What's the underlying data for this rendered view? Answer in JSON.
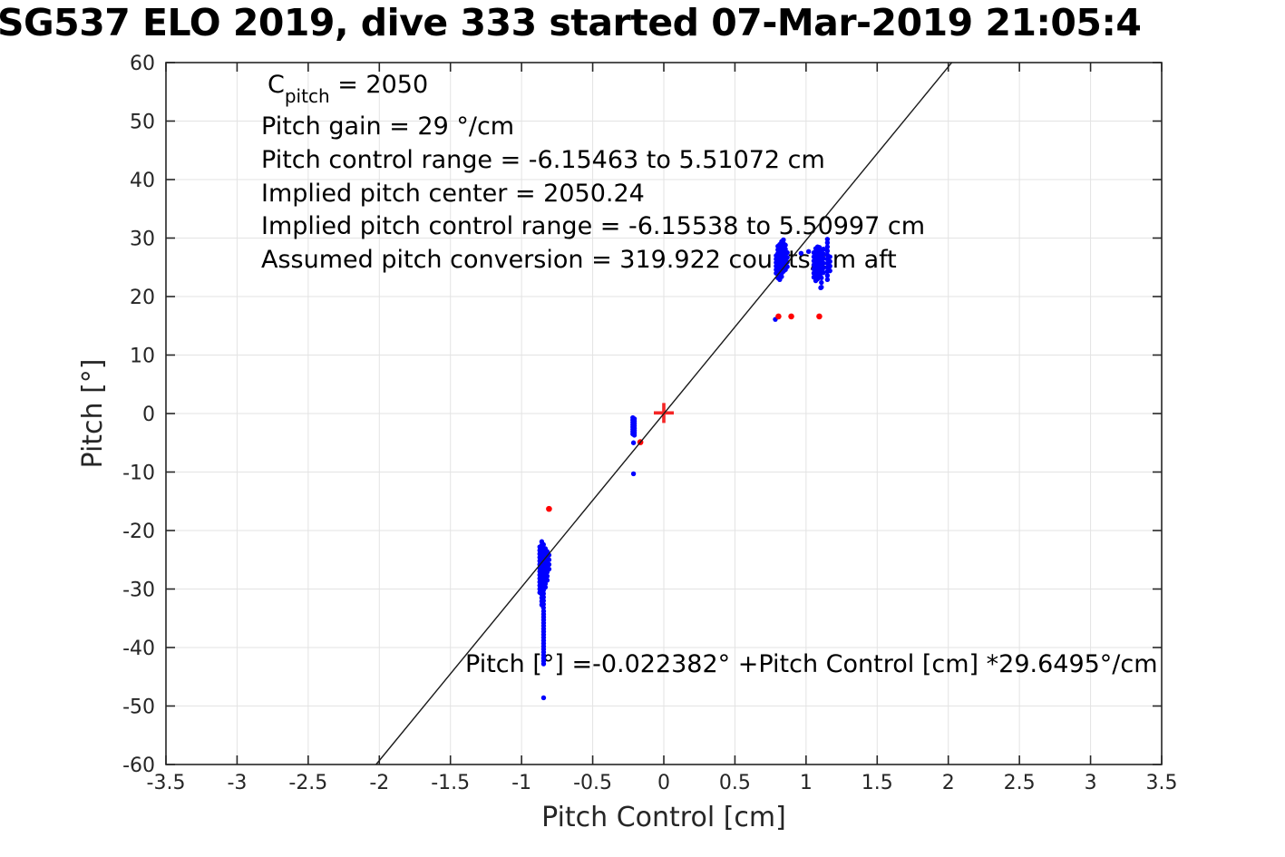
{
  "title": "SG537 ELO 2019, dive 333 started 07-Mar-2019 21:05:4",
  "annotations": {
    "c_pitch": {
      "base": "C",
      "sub": "pitch",
      "rest": " = 2050"
    },
    "lines": [
      "Pitch gain = 29 °/cm",
      "Pitch control range = -6.15463 to 5.51072 cm",
      "Implied pitch center = 2050.24",
      "Implied pitch control range = -6.15538 to 5.50997 cm",
      "Assumed pitch conversion = 319.922 counts/cm aft"
    ],
    "fit_equation": "Pitch [°] =-0.022382° +Pitch Control [cm] *29.6495°/cm"
  },
  "colors": {
    "observed_points": "#0000ff",
    "flagged_points": "#ff0000",
    "center_marker": "#f42525",
    "fit_line": "#1a1a1a",
    "grid": "#e3e3e3",
    "axes": "#262626"
  },
  "chart_data": {
    "type": "scatter",
    "title": "SG537 ELO 2019, dive 333 started 07-Mar-2019 21:05:4",
    "xlabel": "Pitch Control [cm]",
    "ylabel": "Pitch [°]",
    "xlim": [
      -3.5,
      3.5
    ],
    "ylim": [
      -60,
      60
    ],
    "grid": true,
    "x_ticks": [
      -3.5,
      -3,
      -2.5,
      -2,
      -1.5,
      -1,
      -0.5,
      0,
      0.5,
      1,
      1.5,
      2,
      2.5,
      3,
      3.5
    ],
    "y_ticks": [
      -60,
      -50,
      -40,
      -30,
      -20,
      -10,
      0,
      10,
      20,
      30,
      40,
      50,
      60
    ],
    "fit_line": {
      "slope": 29.6495,
      "intercept": -0.022382,
      "x_start": -2.0229,
      "x_end": 2.0245
    },
    "series": [
      {
        "name": "observed-pitch",
        "marker": "dot",
        "color": "#0000ff",
        "strands": [
          {
            "x": -0.872,
            "ys": [
              -22.8,
              -23.4,
              -24.0,
              -24.6,
              -25.2,
              -25.8,
              -26.4,
              -27.0,
              -27.6,
              -28.2,
              -28.8,
              -29.4,
              -30.0,
              -30.6
            ]
          },
          {
            "x": -0.858,
            "ys": [
              -21.9,
              -22.5,
              -23.1,
              -23.7,
              -24.3,
              -24.9,
              -25.5,
              -26.1,
              -26.7,
              -27.3,
              -27.9,
              -28.5,
              -29.1,
              -29.7,
              -30.3,
              -30.9,
              -31.5,
              -32.1,
              -32.7
            ]
          },
          {
            "x": -0.846,
            "ys": [
              -22.4,
              -23.0,
              -23.6,
              -24.2,
              -24.8,
              -25.4,
              -26.0,
              -26.6,
              -27.2,
              -27.8,
              -28.4,
              -29.0,
              -29.6,
              -30.2,
              -30.8,
              -31.4,
              -32.0,
              -32.6,
              -33.2
            ]
          },
          {
            "x": -0.833,
            "ys": [
              -23.1,
              -23.7,
              -24.3,
              -24.9,
              -25.5,
              -26.1,
              -26.7,
              -27.3,
              -27.9,
              -28.5,
              -29.1,
              -29.7
            ]
          },
          {
            "x": -0.82,
            "ys": [
              -23.6,
              -24.3,
              -25.0,
              -25.7,
              -26.4,
              -27.1,
              -27.8,
              -28.5
            ]
          },
          {
            "x": -0.807,
            "ys": [
              -24.2,
              -25.0,
              -25.8,
              -26.6
            ]
          },
          {
            "x": -0.845,
            "ys": [
              -33.8,
              -34.3,
              -34.8,
              -35.3,
              -35.8,
              -36.3,
              -36.8,
              -37.3,
              -37.8,
              -38.3,
              -38.8,
              -39.3,
              -39.8,
              -40.3,
              -40.8,
              -41.3,
              -41.8,
              -42.3,
              -42.8
            ]
          },
          {
            "x": -0.218,
            "ys": [
              -0.7,
              -1.1,
              -1.5,
              -1.9,
              -2.3,
              -2.7,
              -3.1,
              -3.5
            ]
          },
          {
            "x": -0.207,
            "ys": [
              -0.9,
              -1.3,
              -1.7,
              -2.1,
              -2.5,
              -2.9,
              -3.3,
              -3.7
            ]
          },
          {
            "x": 0.79,
            "ys": [
              24.0,
              24.6,
              25.2,
              25.8,
              26.4,
              27.0
            ]
          },
          {
            "x": 0.802,
            "ys": [
              23.2,
              23.8,
              24.4,
              25.0,
              25.6,
              26.2,
              26.8,
              27.4,
              28.0,
              28.6
            ]
          },
          {
            "x": 0.815,
            "ys": [
              22.9,
              23.5,
              24.1,
              24.7,
              25.3,
              25.9,
              26.5,
              27.1,
              27.7,
              28.3,
              28.9
            ]
          },
          {
            "x": 0.828,
            "ys": [
              23.4,
              24.0,
              24.6,
              25.2,
              25.8,
              26.4,
              27.0,
              27.6,
              28.2,
              28.8,
              29.4
            ]
          },
          {
            "x": 0.841,
            "ys": [
              24.3,
              24.9,
              25.5,
              26.1,
              26.7,
              27.3,
              27.9,
              28.5,
              29.1,
              29.7
            ]
          },
          {
            "x": 0.855,
            "ys": [
              24.6,
              25.3,
              26.0,
              26.7,
              27.4,
              28.1,
              28.8
            ]
          },
          {
            "x": 0.868,
            "ys": [
              25.1,
              25.9,
              26.7,
              27.5
            ]
          },
          {
            "x": 1.055,
            "ys": [
              23.3,
              24.0,
              24.7,
              25.4,
              26.1,
              26.8,
              27.5
            ]
          },
          {
            "x": 1.068,
            "ys": [
              22.7,
              23.4,
              24.1,
              24.8,
              25.5,
              26.2,
              26.9,
              27.6,
              28.2
            ]
          },
          {
            "x": 1.081,
            "ys": [
              23.0,
              23.7,
              24.4,
              25.1,
              25.8,
              26.5,
              27.2,
              27.9,
              28.5
            ]
          },
          {
            "x": 1.094,
            "ys": [
              23.5,
              24.2,
              24.9,
              25.6,
              26.3,
              27.0,
              27.7,
              28.4
            ]
          },
          {
            "x": 1.108,
            "ys": [
              21.6,
              22.4,
              23.2,
              24.0,
              24.8,
              25.6,
              26.4,
              27.2,
              28.0
            ]
          },
          {
            "x": 1.122,
            "ys": [
              24.1,
              24.9,
              25.7,
              26.5,
              27.3,
              28.1
            ]
          },
          {
            "x": 1.15,
            "ys": [
              22.9,
              23.6,
              24.3,
              25.0,
              25.7,
              26.4,
              27.1,
              27.8,
              28.5,
              29.2,
              29.8
            ]
          },
          {
            "x": 1.168,
            "ys": [
              24.4,
              25.2,
              26.0,
              26.8
            ]
          }
        ],
        "points": [
          [
            -0.845,
            -48.6
          ],
          [
            -0.213,
            -5.0
          ],
          [
            -0.213,
            -10.3
          ],
          [
            0.784,
            16.1
          ],
          [
            0.965,
            27.4
          ],
          [
            1.018,
            27.7
          ],
          [
            1.103,
            21.5
          ]
        ]
      },
      {
        "name": "flagged-pitch",
        "marker": "dot",
        "color": "#ff0000",
        "points": [
          [
            -0.807,
            -16.3
          ],
          [
            -0.165,
            -4.9
          ],
          [
            0.806,
            16.6
          ],
          [
            0.896,
            16.6
          ],
          [
            1.093,
            16.6
          ]
        ]
      },
      {
        "name": "implied-pitch-center",
        "marker": "plus",
        "color": "#f42525",
        "points": [
          [
            0,
            0.1
          ]
        ]
      }
    ]
  }
}
